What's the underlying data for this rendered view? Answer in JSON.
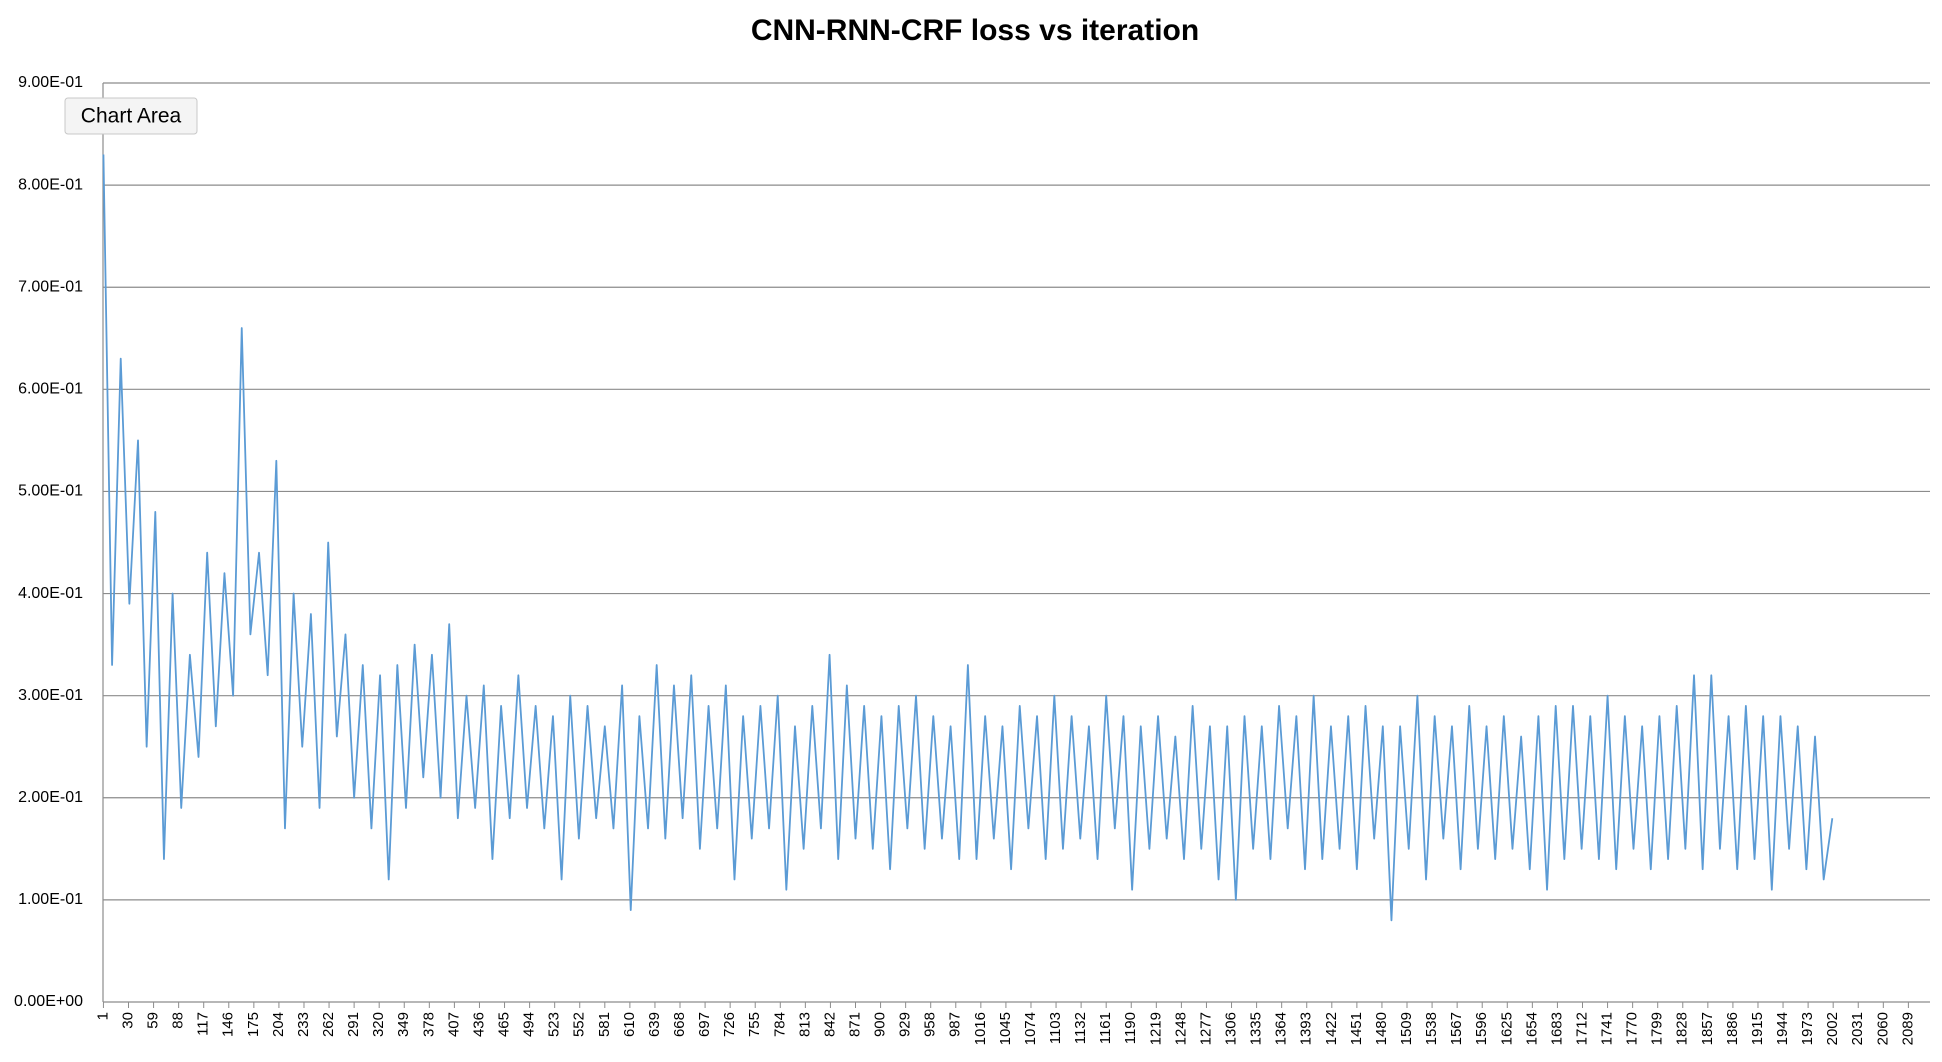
{
  "chart_data": {
    "type": "line",
    "title": "CNN-RNN-CRF loss vs iteration",
    "color": "#5b9bd5",
    "grid": true,
    "ylim": [
      0,
      0.9
    ],
    "yticks": [
      {
        "value": 0,
        "label": "0.00E+00"
      },
      {
        "value": 0.1,
        "label": "1.00E-01"
      },
      {
        "value": 0.2,
        "label": "2.00E-01"
      },
      {
        "value": 0.3,
        "label": "3.00E-01"
      },
      {
        "value": 0.4,
        "label": "4.00E-01"
      },
      {
        "value": 0.5,
        "label": "5.00E-01"
      },
      {
        "value": 0.6,
        "label": "6.00E-01"
      },
      {
        "value": 0.7,
        "label": "7.00E-01"
      },
      {
        "value": 0.8,
        "label": "8.00E-01"
      },
      {
        "value": 0.9,
        "label": "9.00E-01"
      }
    ],
    "xlim": [
      0.5,
      2114
    ],
    "xticks": [
      1,
      30,
      59,
      88,
      117,
      146,
      175,
      204,
      233,
      262,
      291,
      320,
      349,
      378,
      407,
      436,
      465,
      494,
      523,
      552,
      581,
      610,
      639,
      668,
      697,
      726,
      755,
      784,
      813,
      842,
      871,
      900,
      929,
      958,
      987,
      1016,
      1045,
      1074,
      1103,
      1132,
      1161,
      1190,
      1219,
      1248,
      1277,
      1306,
      1335,
      1364,
      1393,
      1422,
      1451,
      1480,
      1509,
      1538,
      1567,
      1596,
      1625,
      1654,
      1683,
      1712,
      1741,
      1770,
      1799,
      1828,
      1857,
      1886,
      1915,
      1944,
      1973,
      2002,
      2031,
      2060,
      2089
    ],
    "x": [
      1,
      11,
      21,
      31,
      41,
      51,
      61,
      71,
      81,
      91,
      101,
      111,
      121,
      131,
      141,
      151,
      161,
      171,
      181,
      191,
      201,
      211,
      221,
      231,
      241,
      251,
      261,
      271,
      281,
      291,
      301,
      311,
      321,
      331,
      341,
      351,
      361,
      371,
      381,
      391,
      401,
      411,
      421,
      431,
      441,
      451,
      461,
      471,
      481,
      491,
      501,
      511,
      521,
      531,
      541,
      551,
      561,
      571,
      581,
      591,
      601,
      611,
      621,
      631,
      641,
      651,
      661,
      671,
      681,
      691,
      701,
      711,
      721,
      731,
      741,
      751,
      761,
      771,
      781,
      791,
      801,
      811,
      821,
      831,
      841,
      851,
      861,
      871,
      881,
      891,
      901,
      911,
      921,
      931,
      941,
      951,
      961,
      971,
      981,
      991,
      1001,
      1011,
      1021,
      1031,
      1041,
      1051,
      1061,
      1071,
      1081,
      1091,
      1101,
      1111,
      1121,
      1131,
      1141,
      1151,
      1161,
      1171,
      1181,
      1191,
      1201,
      1211,
      1221,
      1231,
      1241,
      1251,
      1261,
      1271,
      1281,
      1291,
      1301,
      1311,
      1321,
      1331,
      1341,
      1351,
      1361,
      1371,
      1381,
      1391,
      1401,
      1411,
      1421,
      1431,
      1441,
      1451,
      1461,
      1471,
      1481,
      1491,
      1501,
      1511,
      1521,
      1531,
      1541,
      1551,
      1561,
      1571,
      1581,
      1591,
      1601,
      1611,
      1621,
      1631,
      1641,
      1651,
      1661,
      1671,
      1681,
      1691,
      1701,
      1711,
      1721,
      1731,
      1741,
      1751,
      1761,
      1771,
      1781,
      1791,
      1801,
      1811,
      1821,
      1831,
      1841,
      1851,
      1861,
      1871,
      1881,
      1891,
      1901,
      1911,
      1921,
      1931,
      1941,
      1951,
      1961,
      1971,
      1981,
      1991,
      2001
    ],
    "values": [
      0.83,
      0.33,
      0.63,
      0.39,
      0.55,
      0.25,
      0.48,
      0.14,
      0.4,
      0.19,
      0.34,
      0.24,
      0.44,
      0.27,
      0.42,
      0.3,
      0.66,
      0.36,
      0.44,
      0.32,
      0.53,
      0.17,
      0.4,
      0.25,
      0.38,
      0.19,
      0.45,
      0.26,
      0.36,
      0.2,
      0.33,
      0.17,
      0.32,
      0.12,
      0.33,
      0.19,
      0.35,
      0.22,
      0.34,
      0.2,
      0.37,
      0.18,
      0.3,
      0.19,
      0.31,
      0.14,
      0.29,
      0.18,
      0.32,
      0.19,
      0.29,
      0.17,
      0.28,
      0.12,
      0.3,
      0.16,
      0.29,
      0.18,
      0.27,
      0.17,
      0.31,
      0.09,
      0.28,
      0.17,
      0.33,
      0.16,
      0.31,
      0.18,
      0.32,
      0.15,
      0.29,
      0.17,
      0.31,
      0.12,
      0.28,
      0.16,
      0.29,
      0.17,
      0.3,
      0.11,
      0.27,
      0.15,
      0.29,
      0.17,
      0.34,
      0.14,
      0.31,
      0.16,
      0.29,
      0.15,
      0.28,
      0.13,
      0.29,
      0.17,
      0.3,
      0.15,
      0.28,
      0.16,
      0.27,
      0.14,
      0.33,
      0.14,
      0.28,
      0.16,
      0.27,
      0.13,
      0.29,
      0.17,
      0.28,
      0.14,
      0.3,
      0.15,
      0.28,
      0.16,
      0.27,
      0.14,
      0.3,
      0.17,
      0.28,
      0.11,
      0.27,
      0.15,
      0.28,
      0.16,
      0.26,
      0.14,
      0.29,
      0.15,
      0.27,
      0.12,
      0.27,
      0.1,
      0.28,
      0.15,
      0.27,
      0.14,
      0.29,
      0.17,
      0.28,
      0.13,
      0.3,
      0.14,
      0.27,
      0.15,
      0.28,
      0.13,
      0.29,
      0.16,
      0.27,
      0.08,
      0.27,
      0.15,
      0.3,
      0.12,
      0.28,
      0.16,
      0.27,
      0.13,
      0.29,
      0.15,
      0.27,
      0.14,
      0.28,
      0.15,
      0.26,
      0.13,
      0.28,
      0.11,
      0.29,
      0.14,
      0.29,
      0.15,
      0.28,
      0.14,
      0.3,
      0.13,
      0.28,
      0.15,
      0.27,
      0.13,
      0.28,
      0.14,
      0.29,
      0.15,
      0.32,
      0.13,
      0.32,
      0.15,
      0.28,
      0.13,
      0.29,
      0.14,
      0.28,
      0.11,
      0.28,
      0.15,
      0.27,
      0.13,
      0.26,
      0.12,
      0.18
    ]
  },
  "tooltip": "Chart Area"
}
